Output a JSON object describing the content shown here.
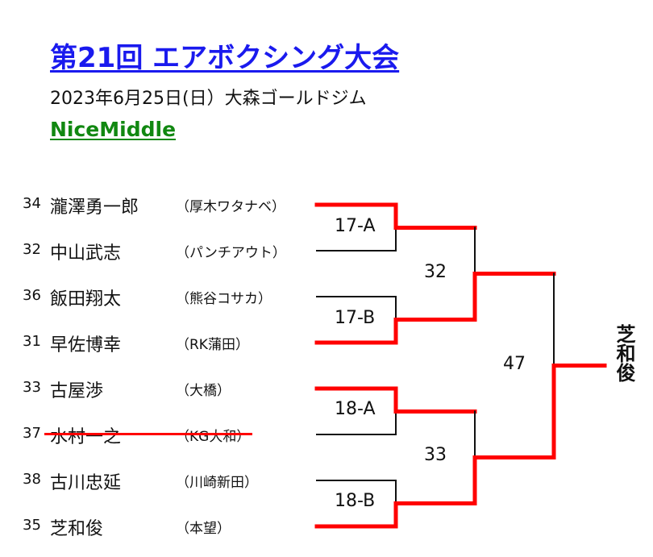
{
  "header": {
    "title": "第21回 エアボクシング大会",
    "subtitle": "2023年6月25日(日）大森ゴールドジム",
    "division": "NiceMiddle"
  },
  "colors": {
    "title": "#1a1aee",
    "division": "#118811",
    "winner_path": "#ff0000",
    "bracket_line": "#111111"
  },
  "players": [
    {
      "seed": "34",
      "name": "瀧澤勇一郎",
      "club": "（厚木ワタナベ）",
      "withdrawn": false
    },
    {
      "seed": "32",
      "name": "中山武志",
      "club": "（パンチアウト）",
      "withdrawn": false
    },
    {
      "seed": "36",
      "name": "飯田翔太",
      "club": "（熊谷コサカ）",
      "withdrawn": false
    },
    {
      "seed": "31",
      "name": "早佐博幸",
      "club": "（RK蒲田）",
      "withdrawn": false
    },
    {
      "seed": "33",
      "name": "古屋渉",
      "club": "（大橋）",
      "withdrawn": false
    },
    {
      "seed": "37",
      "name": "水村一之",
      "club": "（KG大和）",
      "withdrawn": true
    },
    {
      "seed": "38",
      "name": "古川忠延",
      "club": "（川崎新田）",
      "withdrawn": false
    },
    {
      "seed": "35",
      "name": "芝和俊",
      "club": "（本望）",
      "withdrawn": false
    }
  ],
  "matches": {
    "r1": [
      "17-A",
      "17-B",
      "18-A",
      "18-B"
    ],
    "r2": [
      "32",
      "33"
    ],
    "final": "47"
  },
  "winner": "芝和俊"
}
